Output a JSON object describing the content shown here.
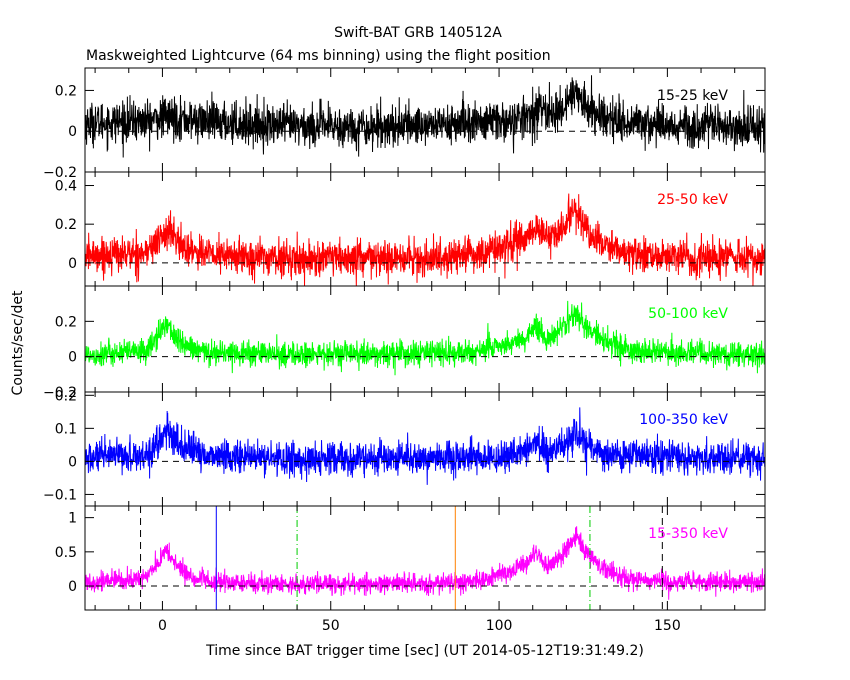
{
  "chart_data": {
    "type": "line",
    "title": "Swift-BAT GRB 140512A",
    "subtitle": "Maskweighted Lightcurve (64 ms binning) using the flight position",
    "xlabel": "Time since BAT trigger time [sec] (UT 2014-05-12T19:31:49.2)",
    "ylabel": "Counts/sec/det",
    "xlim": [
      -23,
      179
    ],
    "xticks": [
      0,
      50,
      100,
      150
    ],
    "xtick_labels": [
      "0",
      "50",
      "100",
      "150"
    ],
    "baseline": 0,
    "panels": [
      {
        "band": "15-25 keV",
        "color": "#000000",
        "ylim": [
          -0.2,
          0.31
        ],
        "yticks": [
          -0.2,
          0,
          0.2
        ],
        "ytick_labels": [
          "−0.2",
          "0",
          "0.2"
        ],
        "noise_sigma": 0.05,
        "shape": [
          [
            -23,
            0.04
          ],
          [
            -5,
            0.05
          ],
          [
            2,
            0.07
          ],
          [
            10,
            0.05
          ],
          [
            30,
            0.03
          ],
          [
            60,
            0.02
          ],
          [
            90,
            0.04
          ],
          [
            105,
            0.05
          ],
          [
            112,
            0.1
          ],
          [
            118,
            0.09
          ],
          [
            122,
            0.2
          ],
          [
            125,
            0.13
          ],
          [
            132,
            0.06
          ],
          [
            150,
            0.03
          ],
          [
            179,
            0.02
          ]
        ]
      },
      {
        "band": "25-50 keV",
        "color": "#ff0000",
        "ylim": [
          -0.12,
          0.47
        ],
        "yticks": [
          0,
          0.2,
          0.4
        ],
        "ytick_labels": [
          "0",
          "0.2",
          "0.4"
        ],
        "noise_sigma": 0.045,
        "shape": [
          [
            -23,
            0.04
          ],
          [
            -5,
            0.05
          ],
          [
            -1,
            0.12
          ],
          [
            2,
            0.17
          ],
          [
            6,
            0.08
          ],
          [
            15,
            0.04
          ],
          [
            40,
            0.02
          ],
          [
            80,
            0.02
          ],
          [
            95,
            0.05
          ],
          [
            105,
            0.1
          ],
          [
            111,
            0.18
          ],
          [
            115,
            0.12
          ],
          [
            119,
            0.17
          ],
          [
            122,
            0.3
          ],
          [
            124,
            0.22
          ],
          [
            130,
            0.1
          ],
          [
            140,
            0.04
          ],
          [
            179,
            0.02
          ]
        ]
      },
      {
        "band": "50-100 keV",
        "color": "#00ff00",
        "ylim": [
          -0.2,
          0.4
        ],
        "yticks": [
          -0.2,
          0,
          0.2
        ],
        "ytick_labels": [
          "−0.2",
          "0",
          "0.2"
        ],
        "noise_sigma": 0.035,
        "shape": [
          [
            -23,
            0.01
          ],
          [
            -5,
            0.03
          ],
          [
            -1,
            0.12
          ],
          [
            1,
            0.2
          ],
          [
            4,
            0.1
          ],
          [
            10,
            0.03
          ],
          [
            40,
            0.01
          ],
          [
            90,
            0.02
          ],
          [
            100,
            0.06
          ],
          [
            108,
            0.1
          ],
          [
            111,
            0.18
          ],
          [
            114,
            0.1
          ],
          [
            119,
            0.17
          ],
          [
            123,
            0.26
          ],
          [
            126,
            0.16
          ],
          [
            132,
            0.08
          ],
          [
            140,
            0.03
          ],
          [
            179,
            0.01
          ]
        ]
      },
      {
        "band": "100-350 keV",
        "color": "#0000ff",
        "ylim": [
          -0.135,
          0.21
        ],
        "yticks": [
          -0.1,
          0,
          0.1,
          0.2
        ],
        "ytick_labels": [
          "−0.1",
          "0",
          "0.1",
          "0.2"
        ],
        "noise_sigma": 0.025,
        "shape": [
          [
            -23,
            0.01
          ],
          [
            -5,
            0.02
          ],
          [
            -1,
            0.06
          ],
          [
            1,
            0.09
          ],
          [
            5,
            0.05
          ],
          [
            12,
            0.02
          ],
          [
            40,
            0.005
          ],
          [
            100,
            0.01
          ],
          [
            108,
            0.03
          ],
          [
            111,
            0.06
          ],
          [
            115,
            0.03
          ],
          [
            119,
            0.04
          ],
          [
            123,
            0.08
          ],
          [
            126,
            0.05
          ],
          [
            132,
            0.02
          ],
          [
            179,
            0.005
          ]
        ]
      },
      {
        "band": "15-350 keV",
        "color": "#ff00ff",
        "ylim": [
          -0.35,
          1.17
        ],
        "yticks": [
          0,
          0.5,
          1
        ],
        "ytick_labels": [
          "0",
          "0.5",
          "1"
        ],
        "noise_sigma": 0.07,
        "shape": [
          [
            -23,
            0.06
          ],
          [
            -6,
            0.1
          ],
          [
            -1,
            0.35
          ],
          [
            1,
            0.52
          ],
          [
            4,
            0.32
          ],
          [
            8,
            0.14
          ],
          [
            15,
            0.05
          ],
          [
            40,
            0.03
          ],
          [
            80,
            0.03
          ],
          [
            95,
            0.08
          ],
          [
            102,
            0.2
          ],
          [
            108,
            0.3
          ],
          [
            111,
            0.52
          ],
          [
            114,
            0.3
          ],
          [
            118,
            0.38
          ],
          [
            121,
            0.6
          ],
          [
            123,
            0.75
          ],
          [
            125,
            0.55
          ],
          [
            130,
            0.3
          ],
          [
            138,
            0.12
          ],
          [
            150,
            0.06
          ],
          [
            179,
            0.04
          ]
        ]
      }
    ],
    "markers": [
      {
        "t": -6.5,
        "color": "#000000",
        "style": "dashed",
        "panel": 4
      },
      {
        "t": 16,
        "color": "#0000ff",
        "style": "solid",
        "panel": 4
      },
      {
        "t": 40,
        "color": "#00cc00",
        "style": "dashdot",
        "panel": 4
      },
      {
        "t": 87,
        "color": "#ff8000",
        "style": "solid",
        "panel": 4
      },
      {
        "t": 127,
        "color": "#00cc00",
        "style": "dashdot",
        "panel": 4
      },
      {
        "t": 148.5,
        "color": "#000000",
        "style": "dashed",
        "panel": 4
      }
    ]
  }
}
